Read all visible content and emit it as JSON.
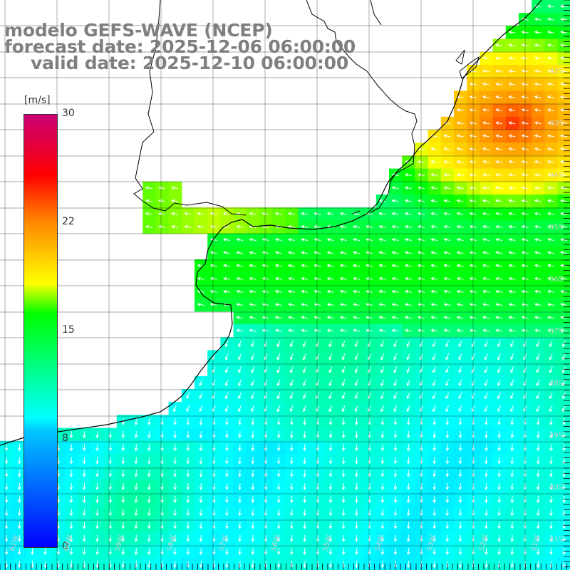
{
  "title": {
    "line1": "modelo GEFS-WAVE (NCEP)",
    "line2": "forecast date: 2025-12-06 06:00:00",
    "line3": "valid date: 2025-12-10 06:00:00"
  },
  "colorbar": {
    "unit": "[m/s]",
    "ticks": [
      {
        "value": 30,
        "label": "30"
      },
      {
        "value": 22,
        "label": "22"
      },
      {
        "value": 15,
        "label": "15"
      },
      {
        "value": 8,
        "label": "8"
      },
      {
        "value": 0,
        "label": "0"
      }
    ],
    "colors": [
      "#0000ff",
      "#00c8ff",
      "#00ffff",
      "#00ff00",
      "#ffff00",
      "#ff8000",
      "#ff0000",
      "#cc0077"
    ]
  },
  "map": {
    "variable": "wind speed",
    "lat_labels": [
      "32S",
      "33S",
      "34S",
      "35S",
      "36S",
      "37S",
      "38S",
      "39S",
      "40S",
      "41S"
    ],
    "lon_labels": [
      "61W",
      "60W",
      "59W",
      "58W",
      "57W",
      "56W",
      "55W",
      "54W",
      "53W",
      "52W",
      "51W"
    ],
    "grid_color": "#000000",
    "land_color": "#ffffff",
    "arrow_color": "#ffffff"
  }
}
